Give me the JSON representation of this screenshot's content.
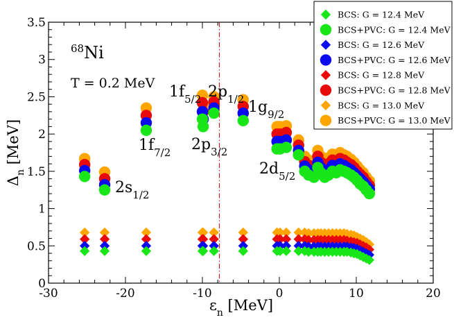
{
  "chart_data": {
    "type": "scatter",
    "title": "",
    "xlabel": "ε",
    "xlabel_sub": "n",
    "xlabel_unit": " [MeV]",
    "ylabel": "Δ",
    "ylabel_sub": "n",
    "ylabel_unit": " [MeV]",
    "xlim": [
      -30,
      20
    ],
    "ylim": [
      0,
      3.5
    ],
    "xticks": [
      -30,
      -20,
      -10,
      0,
      10,
      20
    ],
    "yticks": [
      0,
      0.5,
      1,
      1.5,
      2,
      2.5,
      3,
      3.5
    ],
    "ytick_labels": [
      "0",
      "0.5",
      "1",
      "1.5",
      "2",
      "2.5",
      "3",
      "3.5"
    ],
    "grid": false,
    "legend_position": "top-right",
    "fermi_line_x": -7.8,
    "annotations": {
      "nucleus_mass": "68",
      "nucleus_symbol": "Ni",
      "temperature": "T = 0.2 MeV",
      "levels": [
        {
          "main": "1f",
          "sub": "5/2"
        },
        {
          "main": "2p",
          "sub": "1/2"
        },
        {
          "main": "1g",
          "sub": "9/2"
        },
        {
          "main": "1f",
          "sub": "7/2"
        },
        {
          "main": "2p",
          "sub": "3/2"
        },
        {
          "main": "2s",
          "sub": "1/2"
        },
        {
          "main": "2d",
          "sub": "5/2"
        }
      ]
    },
    "x": [
      -25.3,
      -22.7,
      -17.3,
      -10.0,
      -9.9,
      -8.5,
      -4.7,
      -0.3,
      0.1,
      0.9,
      2.5,
      3.3,
      3.8,
      4.5,
      5.0,
      5.4,
      5.9,
      6.4,
      6.9,
      7.4,
      7.9,
      8.4,
      8.8,
      9.3,
      9.7,
      10.1,
      10.5,
      10.9,
      11.3,
      11.7
    ],
    "series": [
      {
        "name": "BCS: G = 12.4 MeV",
        "marker": "diamond",
        "color": "#19e619",
        "values": [
          0.43,
          0.43,
          0.43,
          0.43,
          0.43,
          0.43,
          0.43,
          0.43,
          0.43,
          0.43,
          0.43,
          0.43,
          0.42,
          0.42,
          0.42,
          0.42,
          0.42,
          0.42,
          0.42,
          0.42,
          0.42,
          0.42,
          0.42,
          0.41,
          0.4,
          0.39,
          0.37,
          0.35,
          0.33,
          0.31
        ]
      },
      {
        "name": "BCS+PVC: G = 12.4 MeV",
        "marker": "circle",
        "color": "#19e619",
        "values": [
          1.43,
          1.25,
          2.05,
          2.2,
          2.1,
          2.28,
          2.18,
          1.8,
          1.8,
          1.82,
          1.72,
          1.5,
          1.45,
          1.42,
          1.55,
          1.48,
          1.42,
          1.45,
          1.5,
          1.48,
          1.52,
          1.5,
          1.48,
          1.45,
          1.42,
          1.38,
          1.33,
          1.3,
          1.25,
          1.2
        ]
      },
      {
        "name": "BCS: G = 12.6 MeV",
        "marker": "diamond",
        "color": "#0a0af0",
        "values": [
          0.5,
          0.5,
          0.5,
          0.5,
          0.5,
          0.5,
          0.5,
          0.5,
          0.5,
          0.5,
          0.5,
          0.5,
          0.49,
          0.49,
          0.49,
          0.49,
          0.49,
          0.49,
          0.49,
          0.49,
          0.49,
          0.49,
          0.49,
          0.48,
          0.47,
          0.46,
          0.44,
          0.42,
          0.4,
          0.38
        ]
      },
      {
        "name": "BCS+PVC: G = 12.6 MeV",
        "marker": "circle",
        "color": "#0a0af0",
        "values": [
          1.51,
          1.32,
          2.15,
          2.3,
          2.2,
          2.35,
          2.28,
          1.9,
          1.9,
          1.92,
          1.78,
          1.57,
          1.52,
          1.48,
          1.62,
          1.55,
          1.5,
          1.52,
          1.58,
          1.55,
          1.6,
          1.58,
          1.55,
          1.52,
          1.48,
          1.44,
          1.4,
          1.36,
          1.31,
          1.26
        ]
      },
      {
        "name": "BCS: G = 12.8 MeV",
        "marker": "diamond",
        "color": "#e80a0a",
        "values": [
          0.59,
          0.59,
          0.59,
          0.59,
          0.59,
          0.59,
          0.59,
          0.59,
          0.59,
          0.59,
          0.59,
          0.59,
          0.58,
          0.58,
          0.58,
          0.58,
          0.58,
          0.58,
          0.58,
          0.58,
          0.58,
          0.58,
          0.57,
          0.56,
          0.55,
          0.54,
          0.52,
          0.5,
          0.48,
          0.45
        ]
      },
      {
        "name": "BCS+PVC: G = 12.8 MeV",
        "marker": "circle",
        "color": "#e80a0a",
        "values": [
          1.59,
          1.4,
          2.25,
          2.42,
          2.3,
          2.43,
          2.37,
          2.0,
          2.0,
          2.02,
          1.85,
          1.63,
          1.58,
          1.55,
          1.7,
          1.62,
          1.57,
          1.6,
          1.65,
          1.62,
          1.67,
          1.65,
          1.62,
          1.59,
          1.55,
          1.5,
          1.46,
          1.42,
          1.36,
          1.31
        ]
      },
      {
        "name": "BCS: G = 13.0 MeV",
        "marker": "diamond",
        "color": "#ffa500",
        "values": [
          0.68,
          0.68,
          0.68,
          0.68,
          0.68,
          0.68,
          0.68,
          0.68,
          0.68,
          0.68,
          0.68,
          0.68,
          0.67,
          0.67,
          0.67,
          0.67,
          0.67,
          0.67,
          0.67,
          0.67,
          0.67,
          0.67,
          0.66,
          0.65,
          0.64,
          0.62,
          0.6,
          0.58,
          0.55,
          0.52
        ]
      },
      {
        "name": "BCS+PVC: G = 13.0 MeV",
        "marker": "circle",
        "color": "#ffa500",
        "values": [
          1.67,
          1.49,
          2.35,
          2.52,
          2.4,
          2.5,
          2.46,
          2.1,
          2.1,
          2.11,
          1.92,
          1.7,
          1.65,
          1.62,
          1.78,
          1.7,
          1.65,
          1.68,
          1.73,
          1.7,
          1.75,
          1.72,
          1.7,
          1.66,
          1.62,
          1.57,
          1.52,
          1.48,
          1.42,
          1.37
        ]
      }
    ]
  }
}
